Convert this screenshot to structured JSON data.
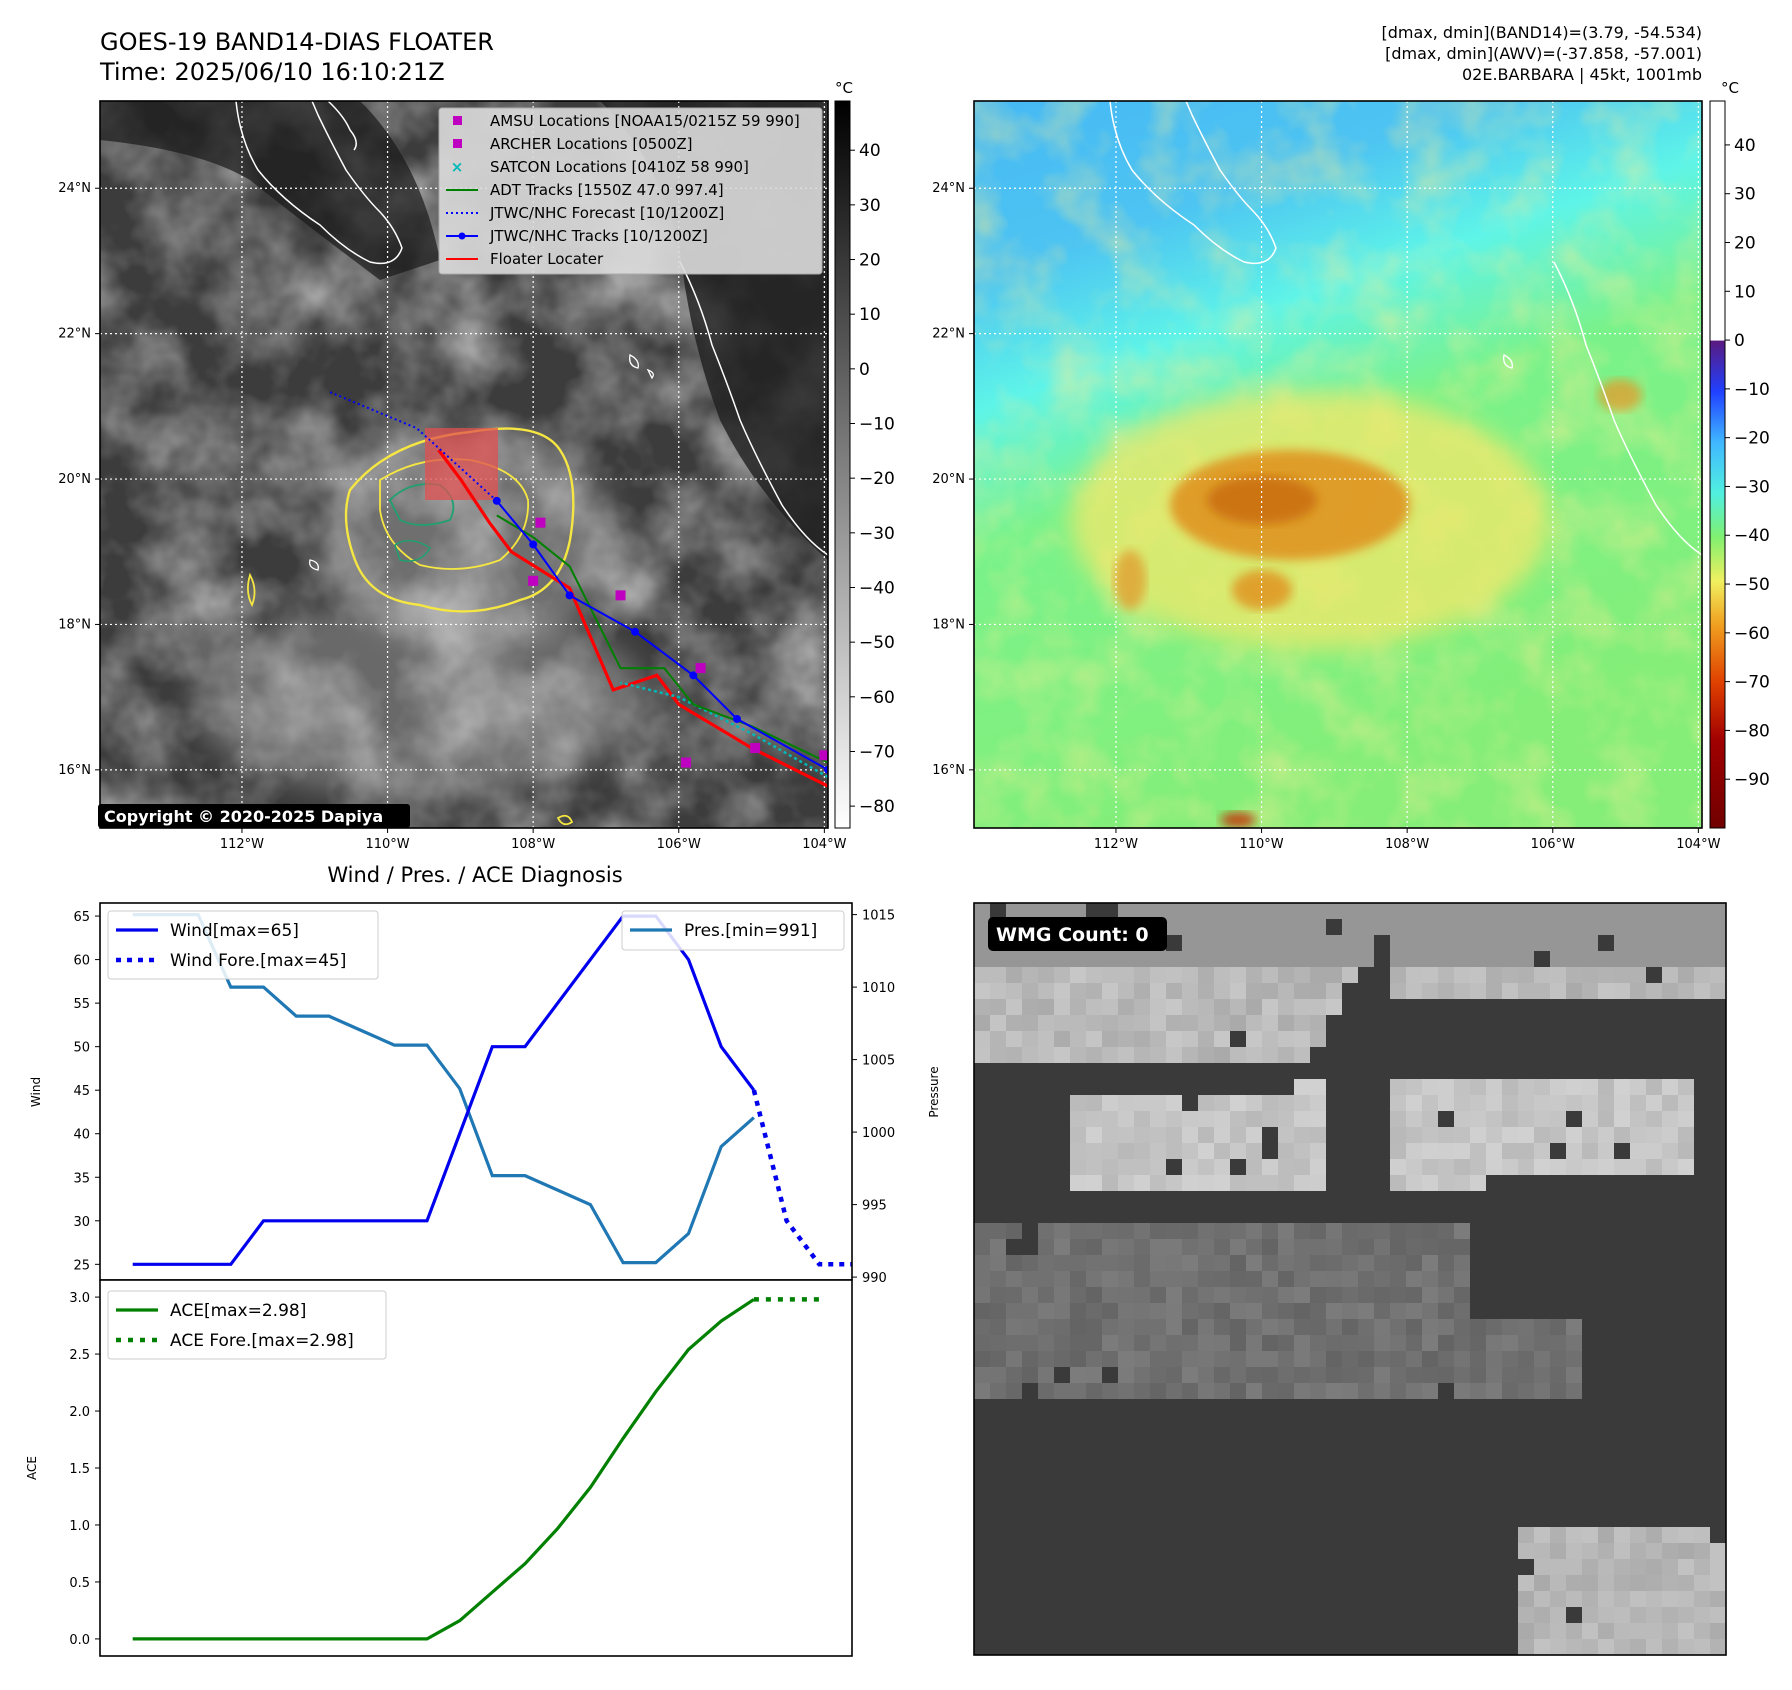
{
  "header": {
    "title_line1": "GOES-19 BAND14-DIAS FLOATER",
    "title_line2": "Time: 2025/06/10 16:10:21Z",
    "info_line1": "[dmax, dmin](BAND14)=(3.79, -54.534)",
    "info_line2": "[dmax, dmin](AWV)=(-37.858, -57.001)",
    "info_line3": "02E.BARBARA | 45kt, 1001mb"
  },
  "map_axes": {
    "lon_ticks": [
      "112°W",
      "110°W",
      "108°W",
      "106°W",
      "104°W"
    ],
    "lon_values": [
      -112,
      -110,
      -108,
      -106,
      -104
    ],
    "lat_ticks": [
      "24°N",
      "22°N",
      "20°N",
      "18°N",
      "16°N"
    ],
    "lat_values": [
      24,
      22,
      20,
      18,
      16
    ],
    "lon_range": [
      -113.95,
      -103.95
    ],
    "lat_range": [
      15.2,
      25.2
    ]
  },
  "ir_colorbar": {
    "unit": "°C",
    "ticks": [
      "40",
      "30",
      "20",
      "10",
      "0",
      "−10",
      "−20",
      "−30",
      "−40",
      "−50",
      "−60",
      "−70",
      "−80"
    ],
    "values": [
      40,
      30,
      20,
      10,
      0,
      -10,
      -20,
      -30,
      -40,
      -50,
      -60,
      -70,
      -80
    ],
    "range": [
      -84,
      49
    ]
  },
  "wv_colorbar": {
    "unit": "°C",
    "ticks": [
      "40",
      "30",
      "20",
      "10",
      "0",
      "−10",
      "−20",
      "−30",
      "−40",
      "−50",
      "−60",
      "−70",
      "−80",
      "−90"
    ],
    "values": [
      40,
      30,
      20,
      10,
      0,
      -10,
      -20,
      -30,
      -40,
      -50,
      -60,
      -70,
      -80,
      -90
    ],
    "range": [
      -100,
      49
    ]
  },
  "legend": {
    "entries": [
      {
        "label": "AMSU Locations [NOAA15/0215Z 59 990]",
        "color": "#c000c0",
        "marker": "square"
      },
      {
        "label": "ARCHER Locations [0500Z]",
        "color": "#c000c0",
        "marker": "square"
      },
      {
        "label": "SATCON Locations [0410Z 58 990]",
        "color": "#00b8b8",
        "marker": "x"
      },
      {
        "label": "ADT Tracks [1550Z 47.0 997.4]",
        "color": "#008000",
        "marker": "line"
      },
      {
        "label": "JTWC/NHC Forecast [10/1200Z]",
        "color": "#0000ff",
        "marker": "dotted"
      },
      {
        "label": "JTWC/NHC Tracks [10/1200Z]",
        "color": "#0000ff",
        "marker": "line-dot"
      },
      {
        "label": "Floater Locater",
        "color": "#ff0000",
        "marker": "line"
      }
    ]
  },
  "copyright": "Copyright © 2020-2025 Dapiya",
  "tracks": {
    "nhc_track": [
      [
        -103.95,
        16.0
      ],
      [
        -105.2,
        16.7
      ],
      [
        -105.8,
        17.3
      ],
      [
        -106.6,
        17.9
      ],
      [
        -107.5,
        18.4
      ],
      [
        -108.0,
        19.1
      ],
      [
        -108.5,
        19.7
      ]
    ],
    "nhc_forecast": [
      [
        -108.5,
        19.7
      ],
      [
        -109.6,
        20.7
      ],
      [
        -110.8,
        21.2
      ]
    ],
    "adt_track": [
      [
        -103.95,
        16.1
      ],
      [
        -105.0,
        16.6
      ],
      [
        -105.8,
        16.9
      ],
      [
        -106.2,
        17.4
      ],
      [
        -106.8,
        17.4
      ],
      [
        -107.5,
        18.8
      ],
      [
        -108.0,
        19.2
      ],
      [
        -108.5,
        19.5
      ]
    ],
    "satcon_track": [
      [
        -103.95,
        15.9
      ],
      [
        -105.0,
        16.5
      ],
      [
        -106.0,
        17.0
      ],
      [
        -106.8,
        17.2
      ]
    ],
    "floater_track": [
      [
        -103.9,
        15.75
      ],
      [
        -105.0,
        16.3
      ],
      [
        -106.0,
        16.9
      ],
      [
        -106.3,
        17.3
      ],
      [
        -106.9,
        17.1
      ],
      [
        -107.5,
        18.5
      ],
      [
        -108.3,
        19.0
      ],
      [
        -108.6,
        19.4
      ],
      [
        -109.0,
        20.0
      ],
      [
        -109.3,
        20.4
      ]
    ],
    "amsu_points": [
      [
        -106.8,
        18.4
      ],
      [
        -107.9,
        19.4
      ],
      [
        -105.7,
        17.4
      ],
      [
        -105.9,
        16.1
      ],
      [
        -104.95,
        16.3
      ],
      [
        -104.0,
        16.2
      ],
      [
        -108.0,
        18.6
      ]
    ]
  },
  "wind_panel": {
    "title": "Wind / Pres. / ACE Diagnosis",
    "ylabel": "Wind",
    "y2label": "Pressure",
    "wind_legend": [
      "Wind[max=65]",
      "Wind Fore.[max=45]"
    ],
    "pres_legend": "Pres.[min=991]",
    "ylim": [
      23.2,
      66.5
    ],
    "y_ticks": [
      25,
      30,
      35,
      40,
      45,
      50,
      55,
      60,
      65
    ],
    "y2lim": [
      989.8,
      1015.8
    ],
    "y2_ticks": [
      990,
      995,
      1000,
      1005,
      1010,
      1015
    ],
    "xlim": [
      -1,
      22
    ],
    "wind": [
      25,
      25,
      25,
      25,
      30,
      30,
      30,
      30,
      30,
      30,
      40,
      50,
      50,
      55,
      60,
      65,
      65,
      60,
      50,
      45
    ],
    "wind_forecast_x": [
      19,
      20,
      21,
      22
    ],
    "wind_forecast": [
      45,
      30,
      25,
      25
    ],
    "pressure": [
      1015,
      1015,
      1015,
      1010,
      1010,
      1008,
      1008,
      1007,
      1006,
      1006,
      1003,
      997,
      997,
      996,
      995,
      991,
      991,
      993,
      999,
      1001
    ],
    "wind_color": "#0000ee",
    "pres_color": "#1f77b4"
  },
  "ace_panel": {
    "ylabel": "ACE",
    "legend": [
      "ACE[max=2.98]",
      "ACE Fore.[max=2.98]"
    ],
    "ylim": [
      -0.15,
      3.15
    ],
    "y_ticks": [
      "0.0",
      "0.5",
      "1.0",
      "1.5",
      "2.0",
      "2.5",
      "3.0"
    ],
    "y_values": [
      0,
      0.5,
      1.0,
      1.5,
      2.0,
      2.5,
      3.0
    ],
    "xlim": [
      -1,
      22
    ],
    "ace": [
      0,
      0,
      0,
      0,
      0,
      0,
      0,
      0,
      0,
      0,
      0.16,
      0.41,
      0.66,
      0.97,
      1.33,
      1.76,
      2.17,
      2.54,
      2.79,
      2.98
    ],
    "ace_forecast_x": [
      19,
      20,
      21
    ],
    "ace_forecast": [
      2.98,
      2.98,
      2.98
    ],
    "color": "#008000"
  },
  "wmg_panel": {
    "label": "WMG Count: 0"
  }
}
